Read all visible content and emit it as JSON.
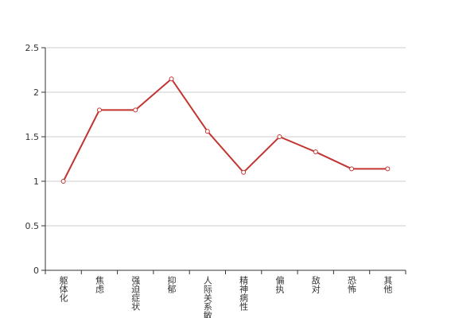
{
  "chart_data": {
    "type": "line",
    "categories": [
      "躯体化",
      "焦虑",
      "强迫症状",
      "抑郁",
      "人际关系敏感",
      "精神病性",
      "偏执",
      "敌对",
      "恐怖",
      "其他"
    ],
    "values": [
      1,
      1.8,
      1.8,
      2.15,
      1.56,
      1.1,
      1.5,
      1.33,
      1.14,
      1.14
    ],
    "color": "#c23531",
    "ylim": [
      0,
      2.5
    ],
    "yticks": [
      0,
      0.5,
      1,
      1.5,
      2,
      2.5
    ],
    "grid": true
  }
}
